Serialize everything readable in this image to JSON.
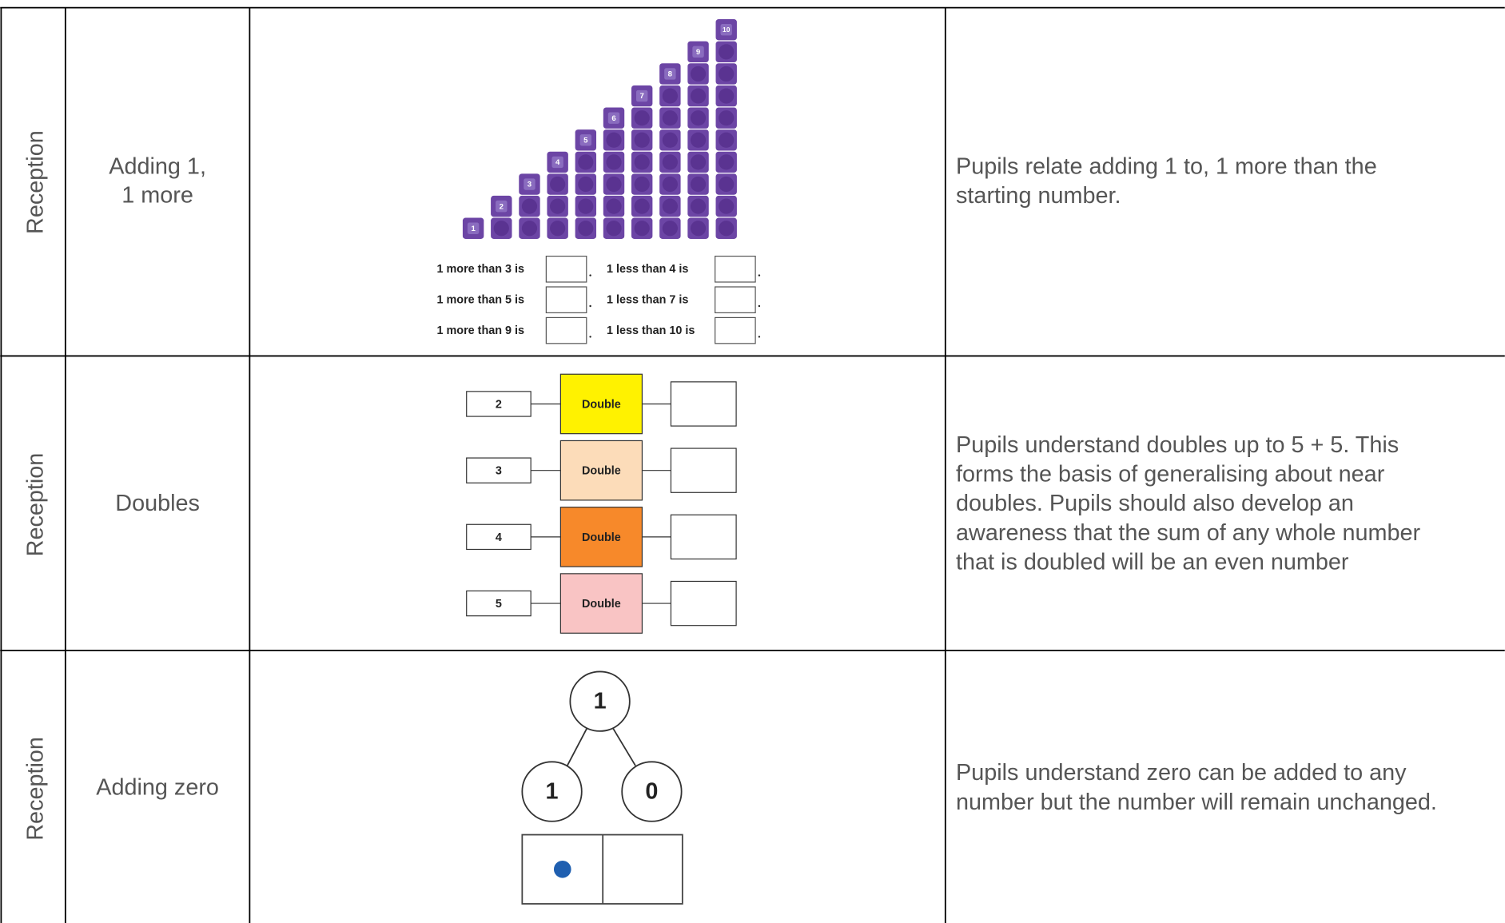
{
  "table": {
    "rows": [
      {
        "stage": "Reception",
        "topic_lines": [
          "Adding 1,",
          "1 more"
        ],
        "image": {
          "tower_labels": [
            "1",
            "2",
            "3",
            "4",
            "5",
            "6",
            "7",
            "8",
            "9",
            "10"
          ],
          "sentences": [
            [
              "1 more than 3 is",
              "1 less than 4 is"
            ],
            [
              "1 more than 5 is",
              "1 less than 7 is"
            ],
            [
              "1 more than 9 is",
              "1 less than 10 is"
            ]
          ]
        },
        "description_lines": [
          "Pupils relate adding 1 to, 1 more than the",
          "starting number."
        ]
      },
      {
        "stage": "Reception",
        "topic_lines": [
          "Doubles"
        ],
        "image": {
          "machines": [
            {
              "input": "2",
              "label": "Double"
            },
            {
              "input": "3",
              "label": "Double"
            },
            {
              "input": "4",
              "label": "Double"
            },
            {
              "input": "5",
              "label": "Double"
            }
          ]
        },
        "description_lines": [
          "Pupils understand doubles up to 5 + 5. This",
          "forms the basis of generalising about near",
          "doubles. Pupils should also develop an",
          "awareness that the sum of any whole number",
          "that is doubled will be an even number"
        ]
      },
      {
        "stage": "Reception",
        "topic_lines": [
          "Adding zero"
        ],
        "image": {
          "whole": "1",
          "parts": [
            "1",
            "0"
          ]
        },
        "description_lines": [
          "Pupils understand zero can be added to any",
          "number but the number will remain unchanged."
        ]
      }
    ]
  }
}
